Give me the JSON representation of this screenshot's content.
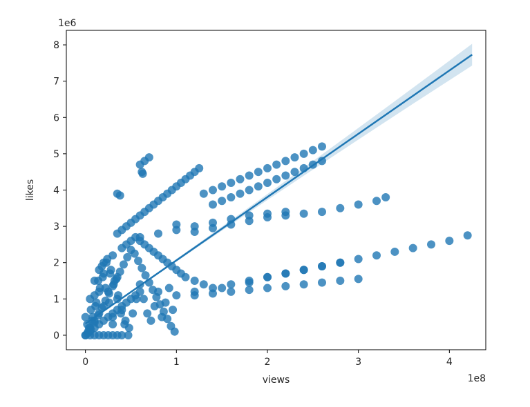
{
  "chart_data": {
    "type": "scatter",
    "title": "",
    "xlabel": "views",
    "ylabel": "likes",
    "x_offset_label": "1e8",
    "y_offset_label": "1e6",
    "x_scale": 100000000,
    "y_scale": 1000000,
    "xlim": [
      -0.21,
      4.4
    ],
    "ylim": [
      -0.4,
      8.4
    ],
    "x_ticks": [
      {
        "value": 0,
        "label": "0"
      },
      {
        "value": 1,
        "label": "1"
      },
      {
        "value": 2,
        "label": "2"
      },
      {
        "value": 3,
        "label": "3"
      },
      {
        "value": 4,
        "label": "4"
      }
    ],
    "y_ticks": [
      {
        "value": 0,
        "label": "0"
      },
      {
        "value": 1,
        "label": "1"
      },
      {
        "value": 2,
        "label": "2"
      },
      {
        "value": 3,
        "label": "3"
      },
      {
        "value": 4,
        "label": "4"
      },
      {
        "value": 5,
        "label": "5"
      },
      {
        "value": 6,
        "label": "6"
      },
      {
        "value": 7,
        "label": "7"
      },
      {
        "value": 8,
        "label": "8"
      }
    ],
    "grid": false,
    "legend": "none",
    "point_color": "#1f77b4",
    "point_alpha": 0.8,
    "regression": {
      "color": "#1f77b4",
      "band_color": "#1f77b4",
      "band_alpha": 0.2,
      "start": [
        0,
        0.32
      ],
      "end": [
        4.25,
        7.73
      ],
      "band_halfwidth_end": 0.28
    },
    "series": [
      {
        "x": [
          0.35,
          0.4,
          0.45,
          0.5,
          0.55,
          0.6,
          0.65,
          0.7,
          0.75,
          0.8,
          0.85,
          0.9,
          0.95,
          1.0,
          1.05,
          1.1,
          1.15,
          1.2,
          1.25,
          0.35,
          0.38,
          0.62,
          0.63,
          0.6,
          0.65,
          0.7,
          1.0,
          1.3,
          1.4,
          1.5,
          1.6,
          1.7,
          1.8,
          1.9,
          2.0,
          2.1,
          2.2,
          2.3,
          2.4,
          2.5,
          2.6,
          1.4,
          1.5,
          1.6,
          1.7,
          1.8,
          1.9,
          2.0,
          2.1,
          2.2,
          2.3,
          2.4,
          2.5,
          2.6,
          1.2,
          1.4,
          1.6,
          1.8,
          2.0,
          2.2,
          2.4,
          2.6,
          2.8,
          3.0,
          3.2,
          3.3,
          0.6,
          0.8,
          1.0,
          1.2,
          1.4,
          1.6,
          1.8,
          2.0,
          2.2,
          1.5,
          1.8,
          2.0,
          2.2,
          2.4,
          2.6,
          2.8,
          3.0,
          3.2,
          3.4,
          3.6,
          3.8,
          4.0,
          4.2,
          1.2,
          1.4,
          1.6,
          1.8,
          2.0,
          2.2,
          2.4,
          2.6,
          2.8,
          1.2,
          1.4,
          1.6,
          1.8,
          2.0,
          2.2,
          2.4,
          2.6,
          2.8,
          3.0,
          0.0,
          0.0,
          0.05,
          0.05,
          0.1,
          0.1,
          0.15,
          0.15,
          0.2,
          0.2,
          0.25,
          0.3,
          0.3,
          0.35,
          0.4,
          0.45,
          0.5,
          0.55,
          0.6,
          0.65,
          0.7,
          0.75,
          0.8,
          0.85,
          0.9,
          0.95,
          1.0,
          1.05,
          1.1,
          1.2,
          1.3,
          0.0,
          0.05,
          0.1,
          0.15,
          0.2,
          0.25,
          0.3,
          0.35,
          0.4,
          0.45,
          0.5,
          0.55,
          0.6,
          0.05,
          0.1,
          0.15,
          0.2,
          0.25,
          0.3,
          0.35,
          0.4,
          0.02,
          0.06,
          0.1,
          0.14,
          0.18,
          0.22,
          0.26,
          0.3,
          0.03,
          0.07,
          0.11,
          0.15,
          0.19,
          0.23,
          0.27,
          0.31,
          0.35,
          0.39,
          0.43,
          0.47,
          0.04,
          0.08,
          0.12,
          0.16,
          0.2,
          0.24,
          0.28,
          0.32,
          0.36,
          0.4,
          0.44,
          0.48,
          0.52,
          0.56,
          0.6,
          0.64,
          0.68,
          0.72,
          0.76,
          0.8,
          0.84,
          0.88,
          0.92,
          0.96,
          1.0,
          0.02,
          0.06,
          0.1,
          0.14,
          0.18,
          0.22,
          0.26,
          0.3,
          0.34,
          0.38,
          0.42,
          0.46,
          0.5,
          0.54,
          0.58,
          0.62,
          0.66,
          0.7,
          0.74,
          0.78,
          0.82,
          0.86,
          0.9,
          0.94,
          0.98
        ],
        "y": [
          2.8,
          2.9,
          3.0,
          3.1,
          3.2,
          3.3,
          3.4,
          3.5,
          3.6,
          3.7,
          3.8,
          3.9,
          4.0,
          4.1,
          4.2,
          4.3,
          4.4,
          4.5,
          4.6,
          3.9,
          3.85,
          4.5,
          4.45,
          4.7,
          4.8,
          4.9,
          3.05,
          3.9,
          4.0,
          4.1,
          4.2,
          4.3,
          4.4,
          4.5,
          4.6,
          4.7,
          4.8,
          4.9,
          5.0,
          5.1,
          5.2,
          3.6,
          3.7,
          3.8,
          3.9,
          4.0,
          4.1,
          4.2,
          4.3,
          4.4,
          4.5,
          4.6,
          4.7,
          4.8,
          2.85,
          2.95,
          3.05,
          3.15,
          3.25,
          3.3,
          3.35,
          3.4,
          3.5,
          3.6,
          3.7,
          3.8,
          2.7,
          2.8,
          2.9,
          3.0,
          3.1,
          3.2,
          3.3,
          3.35,
          3.4,
          1.3,
          1.45,
          1.6,
          1.7,
          1.8,
          1.9,
          2.0,
          2.1,
          2.2,
          2.3,
          2.4,
          2.5,
          2.6,
          2.75,
          1.2,
          1.3,
          1.4,
          1.5,
          1.6,
          1.7,
          1.8,
          1.9,
          2.0,
          1.1,
          1.15,
          1.2,
          1.25,
          1.3,
          1.35,
          1.4,
          1.45,
          1.5,
          1.55,
          0.0,
          0.5,
          0.2,
          1.0,
          0.4,
          1.5,
          0.6,
          1.8,
          0.8,
          2.0,
          1.2,
          0.3,
          2.2,
          1.6,
          2.4,
          2.5,
          2.6,
          2.7,
          2.6,
          2.5,
          2.4,
          2.3,
          2.2,
          2.1,
          2.0,
          1.9,
          1.8,
          1.7,
          1.6,
          1.5,
          1.4,
          0.0,
          0.1,
          0.2,
          0.3,
          0.4,
          0.5,
          0.6,
          0.7,
          0.8,
          0.9,
          1.0,
          1.1,
          1.2,
          0.0,
          0.0,
          0.0,
          0.0,
          0.0,
          0.0,
          0.0,
          0.0,
          0.3,
          0.7,
          1.1,
          1.5,
          1.9,
          1.3,
          0.9,
          0.5,
          0.1,
          0.4,
          0.8,
          1.2,
          1.6,
          2.0,
          1.7,
          1.4,
          1.0,
          0.6,
          0.3,
          0.0,
          0.2,
          0.5,
          0.9,
          1.3,
          1.7,
          2.1,
          1.8,
          1.5,
          1.1,
          0.7,
          0.4,
          0.2,
          0.6,
          1.0,
          1.4,
          1.0,
          0.6,
          0.4,
          0.8,
          1.2,
          0.5,
          0.9,
          1.3,
          0.7,
          1.1,
          0.05,
          0.15,
          0.35,
          0.55,
          0.75,
          0.95,
          1.15,
          1.35,
          1.55,
          1.75,
          1.95,
          2.15,
          2.35,
          2.25,
          2.05,
          1.85,
          1.65,
          1.45,
          1.25,
          1.05,
          0.85,
          0.65,
          0.45,
          0.25,
          0.1
        ]
      }
    ]
  }
}
